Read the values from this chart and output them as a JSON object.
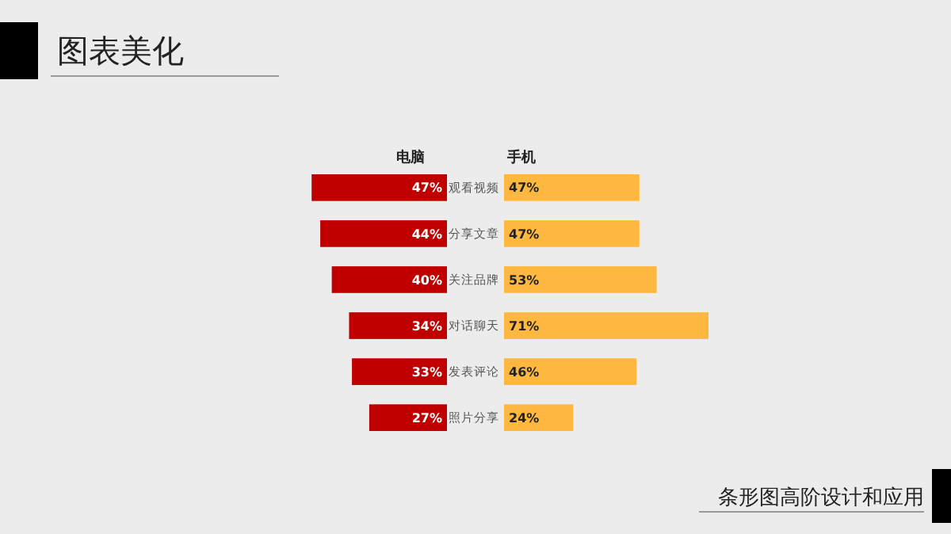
{
  "chart_data": [
    {
      "type": "bar",
      "orientation": "horizontal",
      "title": "图表美化",
      "categories": [
        "观看视频",
        "分享文章",
        "关注品牌",
        "对话聊天",
        "发表评论",
        "照片分享"
      ],
      "series": [
        {
          "name": "电脑",
          "color": "#c00000",
          "values": [
            47,
            44,
            40,
            34,
            33,
            27
          ],
          "value_labels": [
            "47%",
            "44%",
            "40%",
            "34%",
            "33%",
            "27%"
          ]
        }
      ]
    },
    {
      "type": "bar",
      "orientation": "horizontal",
      "annotations": [
        "条形图高阶设计和应用"
      ],
      "categories": [
        null,
        null,
        null,
        null,
        null,
        null
      ],
      "series": [
        {
          "name": "手机",
          "color": "#ffb83f",
          "values": [
            47,
            47,
            53,
            71,
            46,
            24
          ],
          "value_labels": [
            "47%",
            "47%",
            "53%",
            "71%",
            "46%",
            "24%"
          ]
        }
      ]
    }
  ]
}
